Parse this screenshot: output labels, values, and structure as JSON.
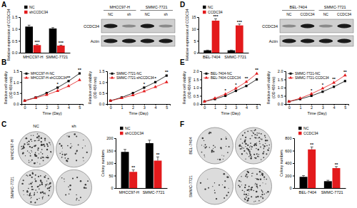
{
  "chart_data": [
    {
      "type": "bar",
      "y_label": "Relative expression of CCDC34",
      "categories": [
        "MHCC97-H",
        "SMMC-7721"
      ],
      "series": [
        {
          "name": "NC",
          "color": "#000000",
          "values": [
            1.1,
            1.02
          ],
          "errors": [
            0.06,
            0.04
          ]
        },
        {
          "name": "shCCDC34",
          "color": "#e31a1c",
          "values": [
            0.32,
            0.3
          ],
          "errors": [
            0.03,
            0.02
          ],
          "significance": [
            "***",
            "***"
          ]
        }
      ],
      "ylim": [
        0,
        1.5
      ],
      "yticks": [
        {
          "value": 0,
          "label": "0.0"
        },
        {
          "value": 0.5,
          "label": "0.5"
        },
        {
          "value": 1,
          "label": "1.0"
        },
        {
          "value": 1.5,
          "label": "1.5"
        }
      ],
      "legend": "top"
    },
    {
      "type": "line",
      "y_label": [
        "Relative cell viability",
        "(OD 450 nm)"
      ],
      "x_label": "Time (Day)",
      "x": [
        0,
        1,
        2,
        3,
        4,
        5
      ],
      "series": [
        {
          "name": "MHCC97-H-NC",
          "color": "#000000",
          "marker": "square",
          "values": [
            0.15,
            0.3,
            0.5,
            0.75,
            1.05,
            1.4
          ]
        },
        {
          "name": "MHCC97-H-shCCDC34",
          "color": "#e31a1c",
          "marker": "triangle",
          "values": [
            0.15,
            0.28,
            0.42,
            0.6,
            0.82,
            1.1
          ],
          "significance": [
            null,
            null,
            null,
            "*",
            "**",
            "**"
          ]
        }
      ],
      "xlim": [
        -0.3,
        5.3
      ],
      "xticks": [
        0,
        1,
        2,
        3,
        4,
        5
      ],
      "ylim": [
        0,
        1.5
      ],
      "yticks": [
        {
          "value": 0,
          "label": "0.0"
        },
        {
          "value": 0.5,
          "label": "0.5"
        },
        {
          "value": 1,
          "label": "1.0"
        },
        {
          "value": 1.5,
          "label": "1.5"
        }
      ],
      "legend": "upper left"
    },
    {
      "type": "line",
      "y_label": [
        "Relative cell viability",
        "(OD 450 nm)"
      ],
      "x_label": "Time (Day)",
      "x": [
        0,
        1,
        2,
        3,
        4,
        5
      ],
      "series": [
        {
          "name": "SMMC-7721-NC",
          "color": "#000000",
          "marker": "square",
          "values": [
            0.15,
            0.3,
            0.5,
            0.75,
            1.0,
            1.3
          ]
        },
        {
          "name": "SMMC-7721-shCCDC34",
          "color": "#e31a1c",
          "marker": "triangle",
          "values": [
            0.15,
            0.27,
            0.4,
            0.58,
            0.78,
            1.0
          ],
          "significance": [
            null,
            null,
            null,
            "*",
            "*",
            "**"
          ]
        }
      ],
      "xlim": [
        -0.3,
        5.3
      ],
      "xticks": [
        0,
        1,
        2,
        3,
        4,
        5
      ],
      "ylim": [
        0,
        1.5
      ],
      "yticks": [
        {
          "value": 0,
          "label": "0.0"
        },
        {
          "value": 0.5,
          "label": "0.5"
        },
        {
          "value": 1,
          "label": "1.0"
        },
        {
          "value": 1.5,
          "label": "1.5"
        }
      ],
      "legend": "upper left"
    },
    {
      "type": "bar",
      "y_label": "Colony numbers",
      "categories": [
        "MHCC97-H",
        "SMMC-7721"
      ],
      "series": [
        {
          "name": "NC",
          "color": "#000000",
          "values": [
            145,
            180
          ],
          "errors": [
            10,
            12
          ]
        },
        {
          "name": "shCCDC34",
          "color": "#e31a1c",
          "values": [
            65,
            110
          ],
          "errors": [
            8,
            15
          ],
          "significance": [
            "**",
            "**"
          ]
        }
      ],
      "ylim": [
        0,
        200
      ],
      "yticks": [
        0,
        50,
        100,
        150,
        200
      ],
      "legend": "top"
    },
    {
      "type": "bar",
      "y_label": "Relative expression of CCDC34",
      "categories": [
        "BEL-7404",
        "SMMC-7721"
      ],
      "series": [
        {
          "name": "NC",
          "color": "#000000",
          "values": [
            1,
            1
          ],
          "errors": [
            0.1,
            0.1
          ]
        },
        {
          "name": "CCDC34",
          "color": "#e31a1c",
          "values": [
            13.5,
            11.5
          ],
          "errors": [
            0.8,
            0.6
          ],
          "significance": [
            "***",
            "***"
          ]
        }
      ],
      "ylim": [
        0,
        15
      ],
      "yticks": [
        0,
        5,
        10,
        15
      ],
      "legend": "top"
    },
    {
      "type": "line",
      "y_label": [
        "Relative cell viability",
        "(OD 450 nm)"
      ],
      "x_label": "Time (Day)",
      "x": [
        0,
        1,
        2,
        3,
        4,
        5
      ],
      "series": [
        {
          "name": "BEL-7404-NC",
          "color": "#000000",
          "marker": "square",
          "values": [
            0.15,
            0.3,
            0.5,
            0.8,
            1.1,
            1.5
          ]
        },
        {
          "name": "BEL-7404-CCDC34",
          "color": "#e31a1c",
          "marker": "triangle",
          "values": [
            0.15,
            0.35,
            0.6,
            0.95,
            1.35,
            1.85
          ],
          "significance": [
            null,
            null,
            "*",
            "*",
            "**",
            "**"
          ]
        }
      ],
      "xlim": [
        -0.3,
        5.3
      ],
      "xticks": [
        0,
        1,
        2,
        3,
        4,
        5
      ],
      "ylim": [
        0,
        2
      ],
      "yticks": [
        {
          "value": 0,
          "label": "0.0"
        },
        {
          "value": 0.5,
          "label": "0.5"
        },
        {
          "value": 1,
          "label": "1.0"
        },
        {
          "value": 1.5,
          "label": "1.5"
        },
        {
          "value": 2,
          "label": "2.0"
        }
      ],
      "legend": "upper left"
    },
    {
      "type": "line",
      "y_label": [
        "Relative cell viability",
        "(OD 450 nm)"
      ],
      "x_label": "Time (Day)",
      "x": [
        0,
        1,
        2,
        3,
        4,
        5
      ],
      "series": [
        {
          "name": "SMMC-7721-NC",
          "color": "#000000",
          "marker": "square",
          "values": [
            0.15,
            0.3,
            0.5,
            0.75,
            1.05,
            1.4
          ]
        },
        {
          "name": "SMMC-7721-CCDC34",
          "color": "#e31a1c",
          "marker": "triangle",
          "values": [
            0.15,
            0.35,
            0.62,
            0.95,
            1.3,
            1.75
          ],
          "significance": [
            null,
            null,
            "*",
            "*",
            "**",
            "**"
          ]
        }
      ],
      "xlim": [
        -0.3,
        5.3
      ],
      "xticks": [
        0,
        1,
        2,
        3,
        4,
        5
      ],
      "ylim": [
        0,
        2
      ],
      "yticks": [
        {
          "value": 0,
          "label": "0.0"
        },
        {
          "value": 0.5,
          "label": "0.5"
        },
        {
          "value": 1,
          "label": "1.0"
        },
        {
          "value": 1.5,
          "label": "1.5"
        },
        {
          "value": 2,
          "label": "2.0"
        }
      ],
      "legend": "upper left"
    },
    {
      "type": "bar",
      "y_label": "Colony numbers",
      "categories": [
        "BEL-7404",
        "SMMC-7721"
      ],
      "series": [
        {
          "name": "NC",
          "color": "#000000",
          "values": [
            180,
            110
          ],
          "errors": [
            20,
            15
          ]
        },
        {
          "name": "CCDC34",
          "color": "#e31a1c",
          "values": [
            620,
            320
          ],
          "errors": [
            40,
            25
          ],
          "significance": [
            "**",
            "**"
          ]
        }
      ],
      "ylim": [
        0,
        800
      ],
      "yticks": [
        0,
        200,
        400,
        600,
        800
      ],
      "legend": "top"
    }
  ],
  "figure": {
    "panel_labels": [
      "A",
      "B",
      "C",
      "D",
      "E",
      "F"
    ],
    "blots": [
      {
        "columns": [
          "MHCC97-H",
          "SMMC-7721"
        ],
        "lanes": [
          "NC",
          "sh",
          "NC",
          "sh"
        ],
        "rows": [
          "CCDC34",
          "Actin"
        ]
      },
      {
        "columns": [
          "BEL-7404",
          "SMMC-7721"
        ],
        "lanes": [
          "NC",
          "CCDC34",
          "NC",
          "CCDC34"
        ],
        "rows": [
          "CCDC34",
          "Actin"
        ]
      }
    ],
    "colony_images": [
      {
        "columns": [
          "NC",
          "sh"
        ],
        "rows": [
          "MHCC97-H",
          "SMMC-7721"
        ]
      },
      {
        "rows": [
          "BEL-7404",
          "SMMC-7721"
        ]
      }
    ]
  }
}
